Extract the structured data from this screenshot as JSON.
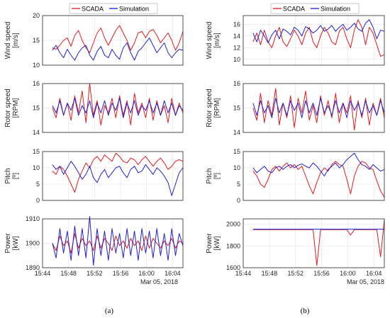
{
  "legend": {
    "scada": "SCADA",
    "simulation": "Simulation"
  },
  "colors": {
    "scada": "#e41a1c",
    "simulation": "#1f1fd6",
    "grid": "#e6e6e6",
    "axis": "#262626"
  },
  "x_axis": {
    "ticks": [
      "15:44",
      "15:48",
      "15:52",
      "15:56",
      "16:00",
      "16:04"
    ],
    "date_label": "Mar 05, 2018"
  },
  "captions": {
    "a": "(a)",
    "b": "(b)"
  },
  "chart_data": [
    {
      "panel": "a",
      "type": "line",
      "ylabel": [
        "Wind speed",
        "[m/s]"
      ],
      "ylim": [
        10,
        20
      ],
      "yticks": [
        10,
        15,
        20
      ],
      "grid": true,
      "series": [
        {
          "name": "SCADA",
          "values": [
            13.5,
            13.2,
            14.0,
            15.0,
            15.5,
            13.8,
            16.0,
            17.0,
            15.0,
            13.5,
            12.5,
            14.5,
            16.5,
            17.5,
            15.5,
            14.0,
            15.5,
            17.0,
            18.0,
            16.5,
            15.0,
            13.0,
            14.5,
            16.5,
            16.8,
            15.5,
            16.8,
            17.2,
            16.0,
            14.5,
            15.5,
            16.5,
            15.0,
            13.0,
            14.5,
            16.8
          ]
        },
        {
          "name": "Simulation",
          "values": [
            13.0,
            14.0,
            12.5,
            11.5,
            13.2,
            12.0,
            11.0,
            12.5,
            13.5,
            14.0,
            12.0,
            11.0,
            12.8,
            13.8,
            12.0,
            11.5,
            13.2,
            12.0,
            11.2,
            13.5,
            14.5,
            12.5,
            11.0,
            12.8,
            13.5,
            14.5,
            15.5,
            14.0,
            12.5,
            13.5,
            14.5,
            12.5,
            11.5,
            12.5,
            13.2,
            13.0
          ]
        }
      ]
    },
    {
      "panel": "b",
      "type": "line",
      "ylabel": [
        "Wind speed",
        "[m/s]"
      ],
      "ylim": [
        9,
        17.5
      ],
      "yticks": [
        10,
        12,
        14,
        16
      ],
      "grid": true,
      "series": [
        {
          "name": "SCADA",
          "values": [
            13.0,
            14.5,
            12.5,
            15.0,
            13.0,
            12.0,
            14.0,
            15.5,
            13.0,
            12.2,
            13.5,
            15.0,
            14.0,
            12.5,
            14.5,
            15.5,
            13.0,
            12.0,
            14.0,
            15.5,
            14.5,
            13.0,
            12.5,
            14.8,
            15.5,
            13.5,
            12.0,
            15.0,
            16.8,
            15.5,
            12.5,
            15.5,
            14.5,
            12.5,
            10.5,
            10.8
          ]
        },
        {
          "name": "Simulation",
          "values": [
            14.5,
            13.0,
            15.0,
            14.0,
            12.8,
            14.2,
            15.0,
            13.5,
            15.2,
            14.8,
            14.2,
            15.5,
            15.0,
            14.0,
            15.6,
            15.2,
            14.5,
            15.0,
            15.8,
            14.8,
            15.2,
            15.8,
            14.8,
            15.5,
            16.0,
            15.0,
            15.5,
            16.2,
            15.2,
            14.8,
            16.2,
            16.8,
            15.5,
            13.5,
            15.0,
            14.8
          ]
        }
      ]
    },
    {
      "panel": "a",
      "type": "line",
      "ylabel": [
        "Rotor speed",
        "[RPM]"
      ],
      "ylim": [
        14,
        16
      ],
      "yticks": [
        14,
        15,
        16
      ],
      "grid": true,
      "series": [
        {
          "name": "SCADA",
          "values": [
            15.0,
            14.6,
            15.4,
            14.7,
            15.2,
            14.5,
            15.5,
            14.8,
            15.7,
            14.4,
            16.0,
            14.7,
            15.3,
            14.3,
            15.1,
            14.8,
            15.4,
            14.6,
            15.5,
            14.7,
            15.3,
            14.3,
            15.6,
            14.8,
            15.2,
            14.6,
            15.4,
            14.5,
            15.3,
            14.7,
            15.1,
            14.4,
            15.4,
            14.7,
            15.2,
            14.8
          ]
        },
        {
          "name": "Simulation",
          "values": [
            15.1,
            14.8,
            15.3,
            14.7,
            15.2,
            14.9,
            15.4,
            14.7,
            15.1,
            14.8,
            15.3,
            14.6,
            15.2,
            14.8,
            15.3,
            14.7,
            15.2,
            14.9,
            15.4,
            14.6,
            15.2,
            14.8,
            15.3,
            14.7,
            15.1,
            14.9,
            15.3,
            14.8,
            15.2,
            14.7,
            15.3,
            14.8,
            15.2,
            14.7,
            15.1,
            14.9
          ]
        }
      ]
    },
    {
      "panel": "b",
      "type": "line",
      "ylabel": [
        "Rotor speed",
        "[RPM]"
      ],
      "ylim": [
        14,
        16
      ],
      "yticks": [
        14,
        15,
        16
      ],
      "grid": true,
      "series": [
        {
          "name": "SCADA",
          "values": [
            15.0,
            14.5,
            15.6,
            14.4,
            15.3,
            14.7,
            15.8,
            14.3,
            15.2,
            14.6,
            15.5,
            14.2,
            15.4,
            14.8,
            15.7,
            14.5,
            15.1,
            14.4,
            15.5,
            14.7,
            15.3,
            14.6,
            15.6,
            14.4,
            15.2,
            14.8,
            15.5,
            14.1,
            15.3,
            14.6,
            15.4,
            14.3,
            15.2,
            14.7,
            15.4,
            14.6
          ]
        },
        {
          "name": "Simulation",
          "values": [
            15.2,
            14.7,
            15.3,
            14.8,
            15.1,
            14.6,
            15.4,
            14.8,
            15.2,
            14.7,
            15.3,
            14.9,
            15.2,
            14.6,
            15.3,
            14.8,
            15.2,
            14.7,
            15.4,
            14.8,
            15.1,
            14.7,
            15.3,
            14.8,
            15.2,
            14.6,
            15.3,
            14.9,
            15.2,
            14.7,
            15.3,
            14.8,
            15.1,
            14.7,
            15.3,
            14.8
          ]
        }
      ]
    },
    {
      "panel": "a",
      "type": "line",
      "ylabel": [
        "Pitch",
        "[º]"
      ],
      "ylim": [
        0,
        15
      ],
      "yticks": [
        0,
        5,
        10,
        15
      ],
      "grid": true,
      "series": [
        {
          "name": "SCADA",
          "values": [
            9.0,
            8.0,
            10.5,
            9.5,
            7.5,
            5.0,
            2.5,
            6.5,
            9.0,
            11.5,
            10.0,
            12.5,
            13.5,
            12.0,
            14.0,
            13.0,
            12.0,
            14.5,
            13.5,
            12.0,
            11.5,
            13.0,
            12.5,
            11.0,
            12.5,
            13.5,
            12.0,
            10.5,
            12.0,
            13.0,
            11.5,
            9.5,
            10.5,
            12.0,
            12.5,
            12.0
          ]
        },
        {
          "name": "Simulation",
          "values": [
            11.0,
            9.5,
            10.5,
            8.0,
            10.0,
            12.0,
            10.5,
            8.5,
            6.5,
            8.0,
            10.5,
            7.0,
            5.5,
            8.0,
            9.5,
            7.0,
            8.5,
            10.0,
            10.5,
            8.5,
            7.0,
            9.5,
            10.5,
            8.5,
            9.0,
            11.0,
            9.5,
            8.0,
            10.0,
            9.0,
            7.5,
            5.5,
            1.5,
            5.0,
            8.5,
            10.0
          ]
        }
      ]
    },
    {
      "panel": "b",
      "type": "line",
      "ylabel": [
        "Pitch",
        "[º]"
      ],
      "ylim": [
        0,
        15
      ],
      "yticks": [
        0,
        5,
        10,
        15
      ],
      "grid": true,
      "series": [
        {
          "name": "SCADA",
          "values": [
            9.0,
            7.5,
            5.0,
            4.0,
            6.5,
            9.5,
            10.5,
            9.0,
            10.5,
            11.5,
            10.0,
            11.0,
            9.5,
            10.5,
            7.5,
            4.5,
            2.0,
            5.5,
            8.5,
            10.0,
            9.0,
            11.0,
            12.0,
            11.0,
            10.5,
            6.5,
            2.0,
            7.5,
            10.5,
            12.0,
            11.5,
            10.0,
            9.5,
            6.0,
            3.0,
            1.0
          ]
        },
        {
          "name": "Simulation",
          "values": [
            10.0,
            8.5,
            9.5,
            10.5,
            9.0,
            8.5,
            10.0,
            10.5,
            9.5,
            10.5,
            11.0,
            10.0,
            10.8,
            11.2,
            10.5,
            10.0,
            11.5,
            10.5,
            9.0,
            7.5,
            9.5,
            10.5,
            11.5,
            10.0,
            11.0,
            12.5,
            13.5,
            14.5,
            12.5,
            11.0,
            10.5,
            9.5,
            11.0,
            10.0,
            9.0,
            9.5
          ]
        }
      ]
    },
    {
      "panel": "a",
      "type": "line",
      "ylabel": [
        "Power",
        "[kW]"
      ],
      "ylim": [
        1890,
        1910
      ],
      "yticks": [
        1890,
        1900,
        1910
      ],
      "grid": true,
      "series": [
        {
          "name": "SCADA",
          "values": [
            1900,
            1897,
            1903,
            1899,
            1901,
            1896,
            1904,
            1898,
            1902,
            1899,
            1901,
            1897,
            1903,
            1898,
            1902,
            1900,
            1897,
            1903,
            1899,
            1901,
            1898,
            1902,
            1899,
            1901,
            1897,
            1903,
            1898,
            1902,
            1900,
            1898,
            1901,
            1899,
            1902,
            1898,
            1901,
            1900
          ]
        },
        {
          "name": "Simulation",
          "values": [
            1900,
            1894,
            1906,
            1896,
            1905,
            1893,
            1907,
            1895,
            1906,
            1894,
            1911,
            1891,
            1906,
            1895,
            1905,
            1893,
            1906,
            1896,
            1904,
            1894,
            1906,
            1895,
            1905,
            1893,
            1906,
            1896,
            1905,
            1894,
            1906,
            1895,
            1904,
            1893,
            1906,
            1895,
            1904,
            1899
          ]
        }
      ]
    },
    {
      "panel": "b",
      "type": "line",
      "ylabel": [
        "Power",
        "[kW]"
      ],
      "ylim": [
        1600,
        2050
      ],
      "yticks": [
        1600,
        1800,
        2000
      ],
      "grid": true,
      "series": [
        {
          "name": "SCADA",
          "values": [
            1950,
            1950,
            1950,
            1950,
            1950,
            1950,
            1950,
            1950,
            1950,
            1950,
            1950,
            1950,
            1950,
            1950,
            1950,
            1950,
            1950,
            1620,
            1950,
            1950,
            1950,
            1950,
            1950,
            1950,
            1950,
            1950,
            1900,
            1950,
            1950,
            1950,
            1950,
            1950,
            1950,
            1950,
            1700,
            2040
          ]
        },
        {
          "name": "Simulation",
          "values": [
            1955,
            1955,
            1955,
            1955,
            1955,
            1955,
            1955,
            1955,
            1955,
            1955,
            1955,
            1955,
            1955,
            1955,
            1955,
            1955,
            1955,
            1955,
            1955,
            1955,
            1955,
            1955,
            1955,
            1955,
            1955,
            1955,
            1955,
            1955,
            1955,
            1955,
            1955,
            1955,
            1955,
            1955,
            1955,
            1955
          ]
        }
      ]
    }
  ]
}
